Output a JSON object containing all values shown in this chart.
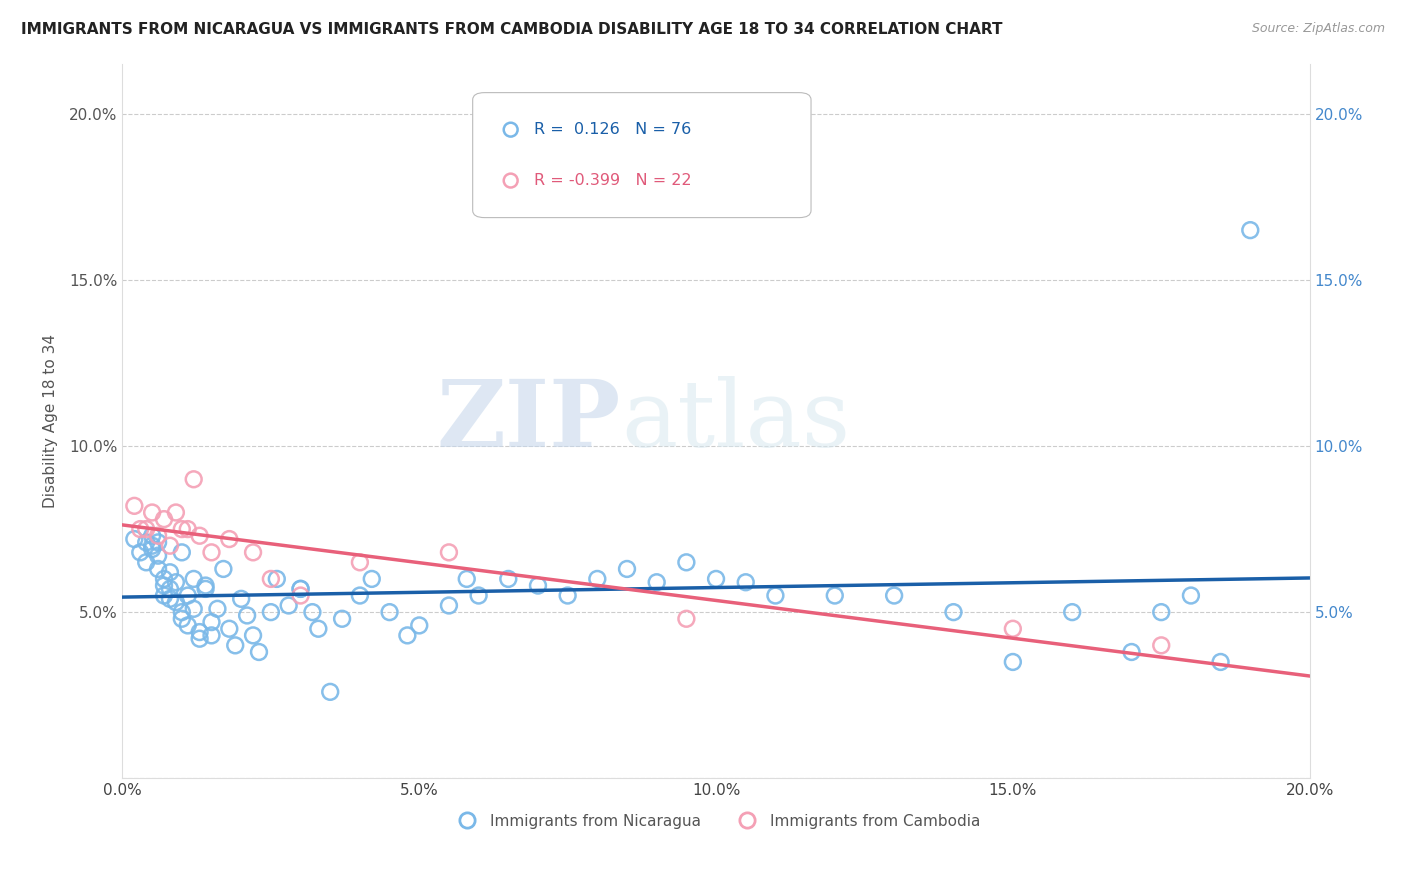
{
  "title": "IMMIGRANTS FROM NICARAGUA VS IMMIGRANTS FROM CAMBODIA DISABILITY AGE 18 TO 34 CORRELATION CHART",
  "source": "Source: ZipAtlas.com",
  "ylabel": "Disability Age 18 to 34",
  "xlim": [
    0.0,
    0.2
  ],
  "ylim": [
    0.0,
    0.215
  ],
  "blue_R": 0.126,
  "blue_N": 76,
  "pink_R": -0.399,
  "pink_N": 22,
  "blue_color": "#7ab8e8",
  "pink_color": "#f4a0b5",
  "trend_blue": "#1a5fa8",
  "trend_pink": "#e8607a",
  "blue_scatter_x": [
    0.002,
    0.003,
    0.004,
    0.004,
    0.005,
    0.005,
    0.005,
    0.006,
    0.006,
    0.006,
    0.007,
    0.007,
    0.007,
    0.008,
    0.008,
    0.008,
    0.009,
    0.009,
    0.01,
    0.01,
    0.01,
    0.011,
    0.011,
    0.012,
    0.012,
    0.013,
    0.013,
    0.014,
    0.014,
    0.015,
    0.015,
    0.016,
    0.017,
    0.018,
    0.019,
    0.02,
    0.021,
    0.022,
    0.023,
    0.025,
    0.026,
    0.028,
    0.03,
    0.03,
    0.032,
    0.033,
    0.035,
    0.037,
    0.04,
    0.042,
    0.045,
    0.048,
    0.05,
    0.055,
    0.058,
    0.06,
    0.065,
    0.07,
    0.075,
    0.08,
    0.085,
    0.09,
    0.095,
    0.1,
    0.105,
    0.11,
    0.12,
    0.13,
    0.14,
    0.15,
    0.16,
    0.17,
    0.175,
    0.18,
    0.185,
    0.19
  ],
  "blue_scatter_y": [
    0.072,
    0.068,
    0.071,
    0.065,
    0.073,
    0.07,
    0.069,
    0.067,
    0.071,
    0.063,
    0.06,
    0.058,
    0.055,
    0.062,
    0.057,
    0.054,
    0.053,
    0.059,
    0.068,
    0.05,
    0.048,
    0.055,
    0.046,
    0.051,
    0.06,
    0.044,
    0.042,
    0.058,
    0.057,
    0.047,
    0.043,
    0.051,
    0.063,
    0.045,
    0.04,
    0.054,
    0.049,
    0.043,
    0.038,
    0.05,
    0.06,
    0.052,
    0.057,
    0.057,
    0.05,
    0.045,
    0.026,
    0.048,
    0.055,
    0.06,
    0.05,
    0.043,
    0.046,
    0.052,
    0.06,
    0.055,
    0.06,
    0.058,
    0.055,
    0.06,
    0.063,
    0.059,
    0.065,
    0.06,
    0.059,
    0.055,
    0.055,
    0.055,
    0.05,
    0.035,
    0.05,
    0.038,
    0.05,
    0.055,
    0.035,
    0.165
  ],
  "pink_scatter_x": [
    0.002,
    0.003,
    0.004,
    0.005,
    0.006,
    0.007,
    0.008,
    0.009,
    0.01,
    0.011,
    0.012,
    0.013,
    0.015,
    0.018,
    0.022,
    0.025,
    0.03,
    0.04,
    0.055,
    0.095,
    0.15,
    0.175
  ],
  "pink_scatter_y": [
    0.082,
    0.075,
    0.075,
    0.08,
    0.073,
    0.078,
    0.07,
    0.08,
    0.075,
    0.075,
    0.09,
    0.073,
    0.068,
    0.072,
    0.068,
    0.06,
    0.055,
    0.065,
    0.068,
    0.048,
    0.045,
    0.04
  ],
  "xticks": [
    0.0,
    0.05,
    0.1,
    0.15,
    0.2
  ],
  "xtick_labels": [
    "0.0%",
    "5.0%",
    "10.0%",
    "15.0%",
    "20.0%"
  ],
  "ytick_vals": [
    0.0,
    0.05,
    0.1,
    0.15,
    0.2
  ],
  "ytick_labels_left": [
    "",
    "5.0%",
    "10.0%",
    "15.0%",
    "20.0%"
  ],
  "ytick_labels_right": [
    "",
    "5.0%",
    "10.0%",
    "15.0%",
    "20.0%"
  ],
  "watermark_zip": "ZIP",
  "watermark_atlas": "atlas",
  "legend_label_blue": "Immigrants from Nicaragua",
  "legend_label_pink": "Immigrants from Cambodia"
}
